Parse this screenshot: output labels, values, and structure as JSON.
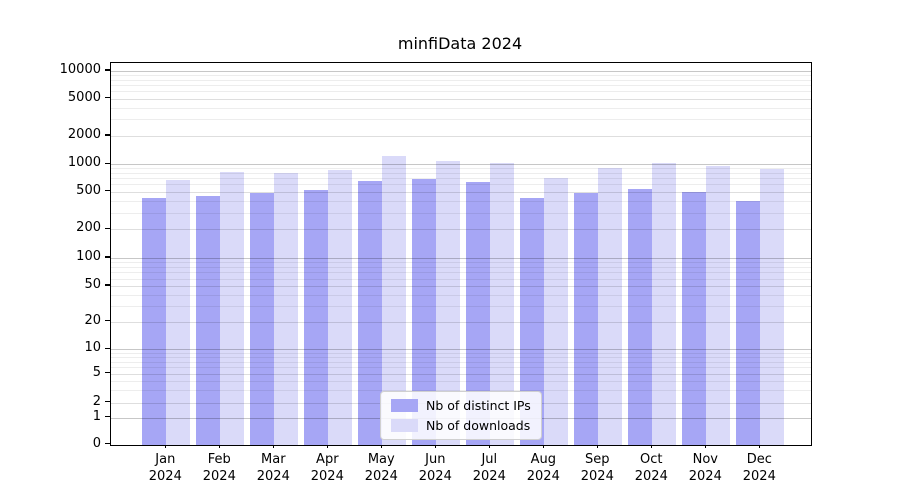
{
  "title": "minfiData 2024",
  "chart_data": {
    "type": "bar",
    "yscale": "symlog",
    "grid": true,
    "background": "#ffffff",
    "legend_position": "lower center",
    "categories": [
      {
        "month": "Jan",
        "year": "2024"
      },
      {
        "month": "Feb",
        "year": "2024"
      },
      {
        "month": "Mar",
        "year": "2024"
      },
      {
        "month": "Apr",
        "year": "2024"
      },
      {
        "month": "May",
        "year": "2024"
      },
      {
        "month": "Jun",
        "year": "2024"
      },
      {
        "month": "Jul",
        "year": "2024"
      },
      {
        "month": "Aug",
        "year": "2024"
      },
      {
        "month": "Sep",
        "year": "2024"
      },
      {
        "month": "Oct",
        "year": "2024"
      },
      {
        "month": "Nov",
        "year": "2024"
      },
      {
        "month": "Dec",
        "year": "2024"
      }
    ],
    "series": [
      {
        "name": "Nb of distinct IPs",
        "color": "#a6a6f5",
        "values": [
          430,
          445,
          480,
          520,
          660,
          685,
          640,
          430,
          490,
          540,
          500,
          400
        ]
      },
      {
        "name": "Nb of downloads",
        "color": "#dadaf9",
        "values": [
          675,
          820,
          810,
          865,
          1220,
          1080,
          1030,
          715,
          915,
          1030,
          970,
          890
        ]
      }
    ],
    "yticks": [
      0,
      1,
      2,
      5,
      10,
      20,
      50,
      100,
      200,
      500,
      1000,
      2000,
      5000,
      10000
    ],
    "ylim": [
      0,
      12000
    ]
  }
}
